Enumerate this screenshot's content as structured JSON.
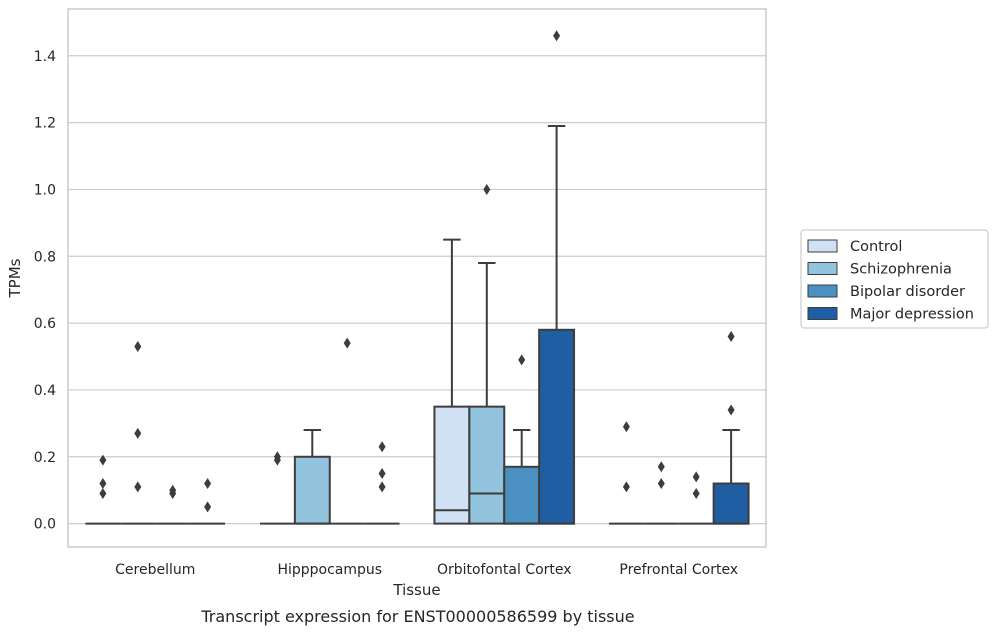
{
  "chart_data": {
    "type": "box",
    "title": "",
    "caption": "Transcript expression for ENST00000586599 by tissue",
    "xlabel": "Tissue",
    "ylabel": "TPMs",
    "ylim": [
      -0.07,
      1.54
    ],
    "yticks": [
      0.0,
      0.2,
      0.4,
      0.6,
      0.8,
      1.0,
      1.2,
      1.4
    ],
    "ytick_labels": [
      "0.0",
      "0.2",
      "0.4",
      "0.6",
      "0.8",
      "1.0",
      "1.2",
      "1.4"
    ],
    "grid": "horizontal",
    "legend_position": "right",
    "categories": [
      "Cerebellum",
      "Hipppocampus",
      "Orbitofontal Cortex",
      "Prefrontal Cortex"
    ],
    "series": [
      {
        "name": "Control",
        "color": "#cfe1f2",
        "boxes": [
          {
            "q1": 0,
            "median": 0,
            "q3": 0,
            "whisker_low": 0,
            "whisker_high": 0,
            "outliers": [
              0.19,
              0.12,
              0.09
            ]
          },
          {
            "q1": 0,
            "median": 0,
            "q3": 0,
            "whisker_low": 0,
            "whisker_high": 0,
            "outliers": [
              0.2,
              0.19
            ]
          },
          {
            "q1": 0,
            "median": 0.04,
            "q3": 0.35,
            "whisker_low": 0,
            "whisker_high": 0.85,
            "outliers": []
          },
          {
            "q1": 0,
            "median": 0,
            "q3": 0,
            "whisker_low": 0,
            "whisker_high": 0,
            "outliers": [
              0.29,
              0.11
            ]
          }
        ]
      },
      {
        "name": "Schizophrenia",
        "color": "#93c4de",
        "boxes": [
          {
            "q1": 0,
            "median": 0,
            "q3": 0,
            "whisker_low": 0,
            "whisker_high": 0,
            "outliers": [
              0.53,
              0.27,
              0.11
            ]
          },
          {
            "q1": 0,
            "median": 0,
            "q3": 0.2,
            "whisker_low": 0,
            "whisker_high": 0.28,
            "outliers": []
          },
          {
            "q1": 0,
            "median": 0.09,
            "q3": 0.35,
            "whisker_low": 0,
            "whisker_high": 0.78,
            "outliers": [
              1.0
            ]
          },
          {
            "q1": 0,
            "median": 0,
            "q3": 0,
            "whisker_low": 0,
            "whisker_high": 0,
            "outliers": [
              0.17,
              0.12
            ]
          }
        ]
      },
      {
        "name": "Bipolar disorder",
        "color": "#4a90c0",
        "boxes": [
          {
            "q1": 0,
            "median": 0,
            "q3": 0,
            "whisker_low": 0,
            "whisker_high": 0,
            "outliers": [
              0.1,
              0.09
            ]
          },
          {
            "q1": 0,
            "median": 0,
            "q3": 0,
            "whisker_low": 0,
            "whisker_high": 0,
            "outliers": [
              0.54
            ]
          },
          {
            "q1": 0,
            "median": 0,
            "q3": 0.17,
            "whisker_low": 0,
            "whisker_high": 0.28,
            "outliers": [
              0.49
            ]
          },
          {
            "q1": 0,
            "median": 0,
            "q3": 0,
            "whisker_low": 0,
            "whisker_high": 0,
            "outliers": [
              0.14,
              0.09
            ]
          }
        ]
      },
      {
        "name": "Major depression",
        "color": "#1f5ea3",
        "boxes": [
          {
            "q1": 0,
            "median": 0,
            "q3": 0,
            "whisker_low": 0,
            "whisker_high": 0,
            "outliers": [
              0.12,
              0.05
            ]
          },
          {
            "q1": 0,
            "median": 0,
            "q3": 0,
            "whisker_low": 0,
            "whisker_high": 0,
            "outliers": [
              0.23,
              0.15,
              0.11
            ]
          },
          {
            "q1": 0,
            "median": 0,
            "q3": 0.58,
            "whisker_low": 0,
            "whisker_high": 1.19,
            "outliers": [
              1.46
            ]
          },
          {
            "q1": 0,
            "median": 0,
            "q3": 0.12,
            "whisker_low": 0,
            "whisker_high": 0.28,
            "outliers": [
              0.56,
              0.34
            ]
          }
        ]
      }
    ]
  }
}
